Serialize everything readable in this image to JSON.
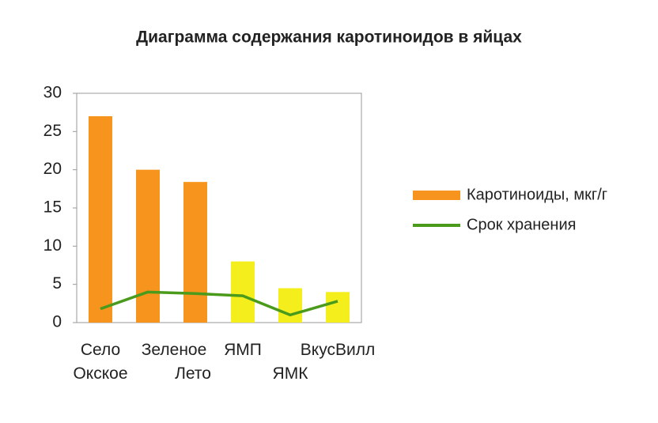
{
  "chart_data": {
    "type": "bar_line",
    "title": "Диаграмма содержания каротиноидов в яйцах",
    "categories": [
      "Село Окское",
      "Зеленое",
      "Лето",
      "ЯМП",
      "ЯМК",
      "ВкусВилл"
    ],
    "series": [
      {
        "name": "Каротиноиды, мкг/г",
        "type": "bar",
        "color": "#f7941d",
        "colors": [
          "#f7941d",
          "#f7941d",
          "#f7941d",
          "#f4ef1c",
          "#f4ef1c",
          "#f4ef1c"
        ],
        "values": [
          27,
          20,
          18.4,
          8,
          4.5,
          4
        ]
      },
      {
        "name": "Срок хранения",
        "type": "line",
        "color": "#4a9a1c",
        "values": [
          1.8,
          4,
          3.8,
          3.5,
          1,
          2.8
        ]
      }
    ],
    "ylim": [
      0,
      30
    ],
    "yticks": [
      0,
      5,
      10,
      15,
      20,
      25,
      30
    ],
    "grid": false,
    "legend": "right"
  }
}
